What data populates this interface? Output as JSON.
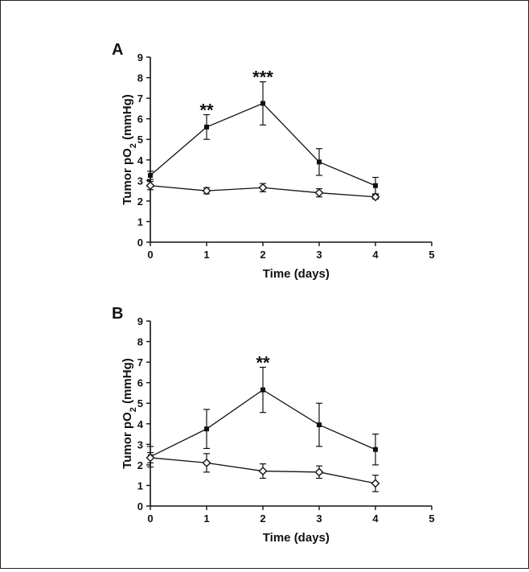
{
  "chart_data": [
    {
      "type": "line",
      "panel_label": "A",
      "title": "",
      "xlabel": "Time (days)",
      "ylabel": "Tumor pO2 (mmHg)",
      "ylabel_parts": {
        "pre": "Tumor pO",
        "sub": "2",
        "post": " (mmHg)"
      },
      "xlim": [
        0,
        5
      ],
      "ylim": [
        0,
        9
      ],
      "x_ticks": [
        "0",
        "1",
        "2",
        "3",
        "4",
        "5"
      ],
      "y_ticks": [
        "0",
        "1",
        "2",
        "3",
        "4",
        "5",
        "6",
        "7",
        "8",
        "9"
      ],
      "grid": false,
      "legend": "none",
      "series": [
        {
          "marker": "square",
          "x": [
            0,
            1,
            2,
            3,
            4
          ],
          "y": [
            3.25,
            5.6,
            6.75,
            3.9,
            2.75
          ],
          "err": [
            0.2,
            0.6,
            1.05,
            0.65,
            0.4
          ]
        },
        {
          "marker": "diamond",
          "x": [
            0,
            1,
            2,
            3,
            4
          ],
          "y": [
            2.75,
            2.5,
            2.65,
            2.4,
            2.2
          ],
          "err": [
            0.2,
            0.15,
            0.2,
            0.2,
            0.1
          ]
        }
      ],
      "annotations": [
        {
          "text": "**",
          "x": 1
        },
        {
          "text": "***",
          "x": 2
        }
      ]
    },
    {
      "type": "line",
      "panel_label": "B",
      "title": "",
      "xlabel": "Time (days)",
      "ylabel": "Tumor pO2 (mmHg)",
      "ylabel_parts": {
        "pre": "Tumor pO",
        "sub": "2",
        "post": " (mmHg)"
      },
      "xlim": [
        0,
        5
      ],
      "ylim": [
        0,
        9
      ],
      "x_ticks": [
        "0",
        "1",
        "2",
        "3",
        "4",
        "5"
      ],
      "y_ticks": [
        "0",
        "1",
        "2",
        "3",
        "4",
        "5",
        "6",
        "7",
        "8",
        "9"
      ],
      "grid": false,
      "legend": "none",
      "series": [
        {
          "marker": "square",
          "x": [
            0,
            1,
            2,
            3,
            4
          ],
          "y": [
            2.4,
            3.75,
            5.65,
            3.95,
            2.75
          ],
          "err": [
            0.5,
            0.95,
            1.1,
            1.05,
            0.75
          ]
        },
        {
          "marker": "diamond",
          "x": [
            0,
            1,
            2,
            3,
            4
          ],
          "y": [
            2.35,
            2.1,
            1.7,
            1.65,
            1.1
          ],
          "err": [
            0.25,
            0.45,
            0.35,
            0.3,
            0.4
          ]
        }
      ],
      "annotations": [
        {
          "text": "**",
          "x": 2
        }
      ]
    }
  ]
}
